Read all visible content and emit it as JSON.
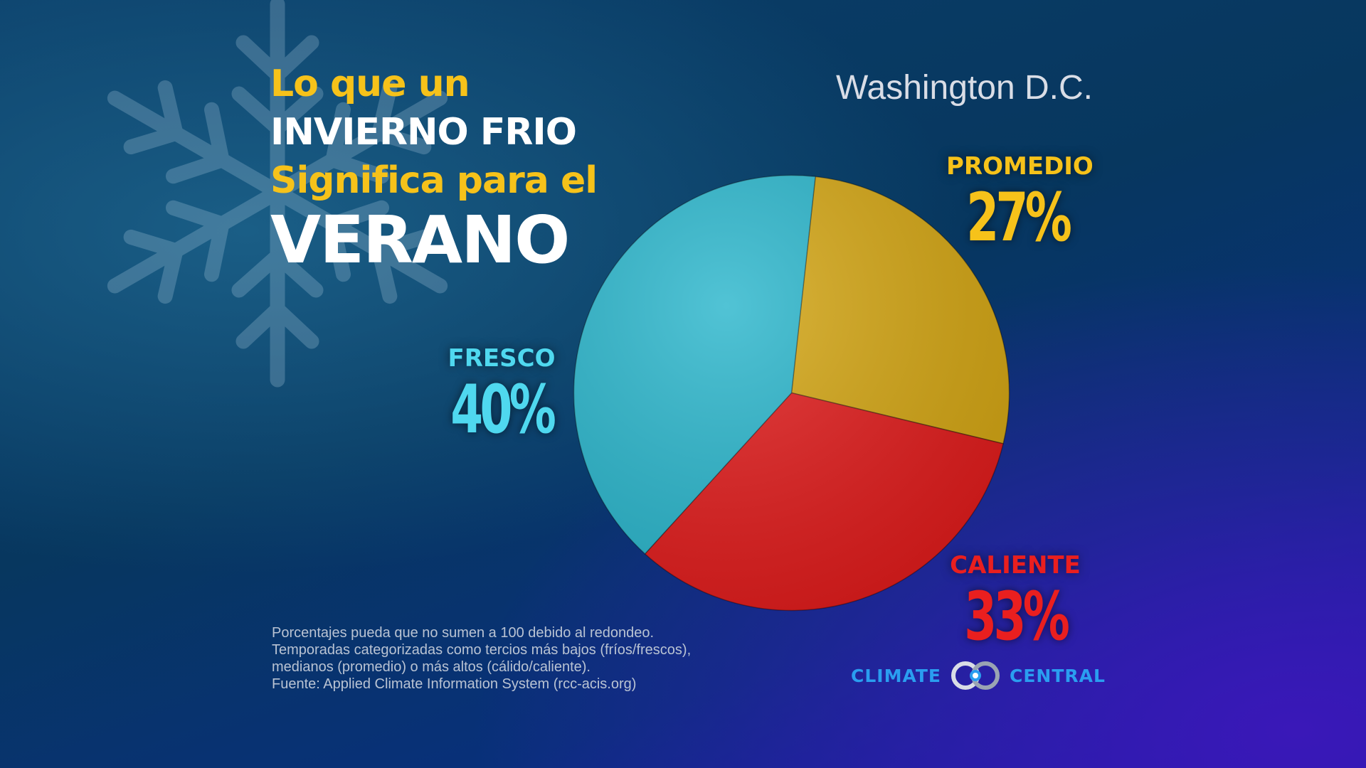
{
  "title": {
    "line1": "Lo que un",
    "line2": "INVIERNO FRIO",
    "line3": "Significa para el",
    "line4": "VERANO"
  },
  "location": "Washington D.C.",
  "colors": {
    "promedio": "#d4a614",
    "caliente": "#e11d1d",
    "fresco": "#2bb6cc",
    "accent_yellow": "#f6c21a",
    "accent_cyan": "#4fd8ef",
    "accent_red": "#ea1f1f"
  },
  "chart_data": {
    "type": "pie",
    "title": "",
    "slices": [
      {
        "label": "PROMEDIO",
        "value": 27,
        "display": "27%",
        "color": "#d4a614"
      },
      {
        "label": "CALIENTE",
        "value": 33,
        "display": "33%",
        "color": "#e11d1d"
      },
      {
        "label": "FRESCO",
        "value": 40,
        "display": "40%",
        "color": "#2bb6cc"
      }
    ]
  },
  "footnote": [
    "Porcentajes pueda que no sumen a 100 debido al redondeo.",
    "Temporadas categorizadas como tercios más bajos (fríos/frescos),",
    "medianos (promedio) o más altos (cálido/caliente).",
    "Fuente: Applied Climate Information System (rcc-acis.org)"
  ],
  "brand": {
    "left": "CLIMATE",
    "right": "CENTRAL",
    "icon": "climate-central-logo-icon"
  }
}
